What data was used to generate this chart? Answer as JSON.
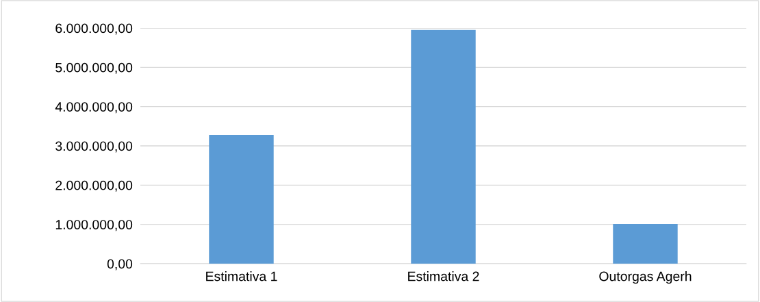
{
  "chart_data": {
    "type": "bar",
    "categories": [
      "Estimativa 1",
      "Estimativa 2",
      "Outorgas Agerh"
    ],
    "values": [
      3280000,
      5950000,
      1010000
    ],
    "color": "#5b9bd5",
    "ylim": [
      0,
      6000000
    ],
    "yticks": [
      {
        "value": 0,
        "label": "0,00"
      },
      {
        "value": 1000000,
        "label": "1.000.000,00"
      },
      {
        "value": 2000000,
        "label": "2.000.000,00"
      },
      {
        "value": 3000000,
        "label": "3.000.000,00"
      },
      {
        "value": 4000000,
        "label": "4.000.000,00"
      },
      {
        "value": 5000000,
        "label": "5.000.000,00"
      },
      {
        "value": 6000000,
        "label": "6.000.000,00"
      }
    ],
    "grid": "y"
  }
}
